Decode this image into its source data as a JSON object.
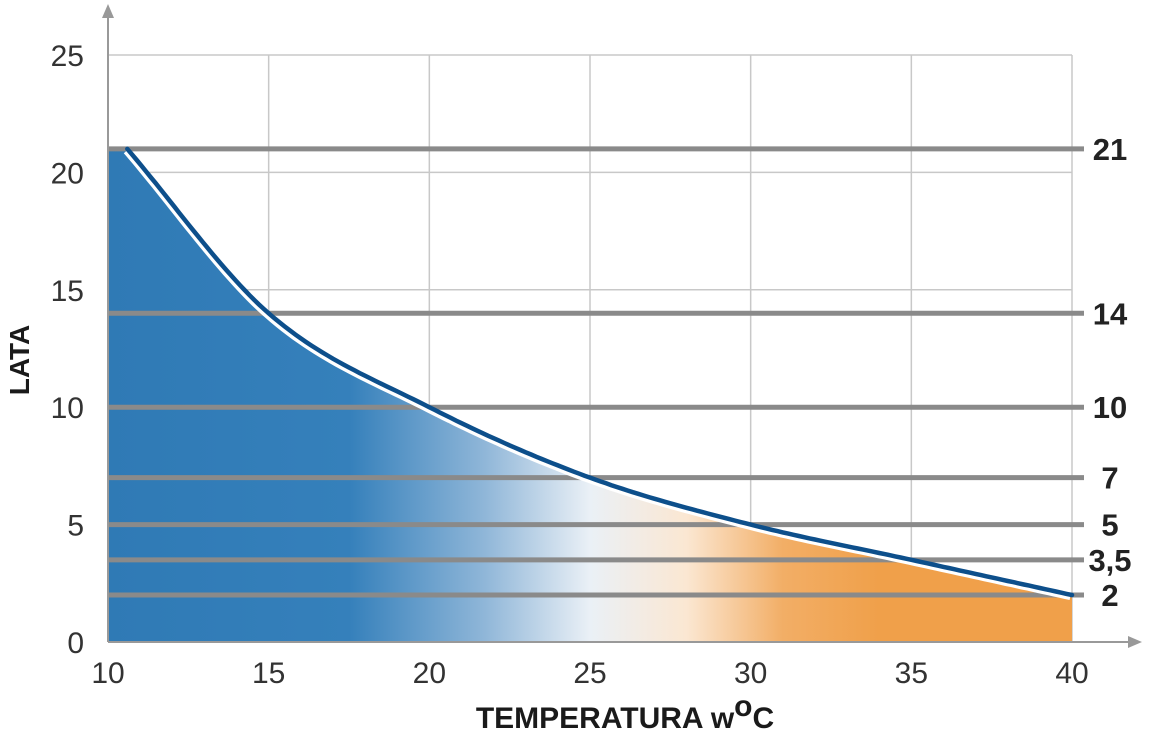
{
  "chart_data": {
    "type": "area",
    "xlabel": "TEMPERATURA  w",
    "xlabel_unit_sup": "o",
    "xlabel_unit": "C",
    "ylabel": "LATA",
    "xlim": [
      10,
      40
    ],
    "ylim": [
      0,
      25
    ],
    "x_ticks": [
      "10",
      "15",
      "20",
      "25",
      "30",
      "35",
      "40"
    ],
    "y_ticks": [
      "0",
      "5",
      "10",
      "15",
      "20",
      "25"
    ],
    "grid": true,
    "series": [
      {
        "x": [
          10.6,
          15,
          20,
          25,
          30,
          35,
          40
        ],
        "y": [
          21,
          14,
          10,
          7,
          5,
          3.5,
          2
        ]
      }
    ],
    "reference_lines": [
      {
        "y": 21,
        "label": "21"
      },
      {
        "y": 14,
        "label": "14"
      },
      {
        "y": 10,
        "label": "10"
      },
      {
        "y": 7,
        "label": "7"
      },
      {
        "y": 5,
        "label": "5"
      },
      {
        "y": 3.5,
        "label": "3,5"
      },
      {
        "y": 2,
        "label": "2"
      }
    ],
    "fill_gradient": [
      "#2f7ab5",
      "#e5edf5",
      "#f0a04a"
    ],
    "colors": {
      "curve": "#0d4f8b",
      "ref_line": "#8a8a8a",
      "grid": "#c8c8c8",
      "axis": "#999999"
    }
  }
}
